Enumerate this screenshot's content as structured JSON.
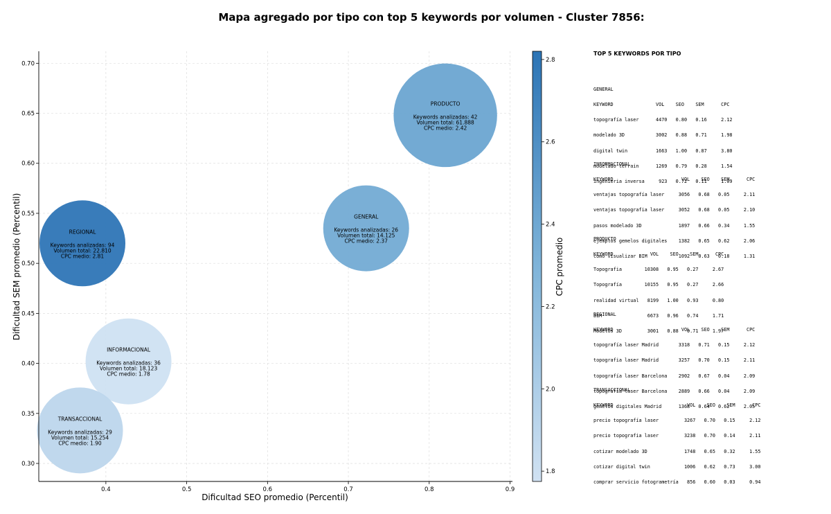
{
  "title": "Mapa agregado por tipo con top 5 keywords por volumen - Cluster 7856:",
  "chart_data": {
    "type": "scatter",
    "title": "Mapa agregado por tipo con top 5 keywords por volumen - Cluster 7856:",
    "xlabel": "Dificultad SEO promedio (Percentil)",
    "ylabel": "Dificultad SEM promedio (Percentil)",
    "xlim": [
      0.317,
      0.903
    ],
    "ylim": [
      0.282,
      0.712
    ],
    "xticks": [
      "0.4",
      "0.5",
      "0.6",
      "0.7",
      "0.8",
      "0.9"
    ],
    "yticks": [
      "0.30",
      "0.35",
      "0.40",
      "0.45",
      "0.50",
      "0.55",
      "0.60",
      "0.65",
      "0.70"
    ],
    "grid": true,
    "colorbar": {
      "label": "CPC promedio",
      "min": 1.775,
      "max": 2.82,
      "ticks": [
        "1.8",
        "2.0",
        "2.2",
        "2.4",
        "2.6",
        "2.8"
      ]
    },
    "points": [
      {
        "name": "PRODUCTO",
        "x": 0.82,
        "y": 0.648,
        "keywords_line": "Keywords analizadas: 42",
        "volume_line": "Volumen total: 61.888",
        "cpc_line": "CPC medio: 2.42",
        "cpc": 2.42,
        "volume": 61888
      },
      {
        "name": "GENERAL",
        "x": 0.722,
        "y": 0.535,
        "keywords_line": "Keywords analizadas: 26",
        "volume_line": "Volumen total: 14.125",
        "cpc_line": "CPC medio: 2.37",
        "cpc": 2.37,
        "volume": 14125
      },
      {
        "name": "REGIONAL",
        "x": 0.371,
        "y": 0.52,
        "keywords_line": "Keywords analizadas: 94",
        "volume_line": "Volumen total: 22.810",
        "cpc_line": "CPC medio: 2.81",
        "cpc": 2.81,
        "volume": 22810
      },
      {
        "name": "INFORMACIONAL",
        "x": 0.428,
        "y": 0.402,
        "keywords_line": "Keywords analizadas: 36",
        "volume_line": "Volumen total: 18.123",
        "cpc_line": "CPC medio: 1.78",
        "cpc": 1.78,
        "volume": 18123
      },
      {
        "name": "TRANSACCIONAL",
        "x": 0.368,
        "y": 0.333,
        "keywords_line": "Keywords analizadas: 29",
        "volume_line": "Volumen total: 15.254",
        "cpc_line": "CPC medio: 1.90",
        "cpc": 1.9,
        "volume": 15254
      }
    ]
  },
  "top_keywords": {
    "title": "TOP 5 KEYWORDS POR TIPO",
    "blocks": [
      {
        "type": "GENERAL",
        "lines": [
          "KEYWORD               VOL    SEO    SEM      CPC",
          "topografía laser      4470   0.80   0.16     2.12",
          "modelado 3D           3002   0.88   0.71     1.98",
          "digital twin          1663   1.00   0.87     3.80",
          "modelado terrain      1269   0.79   0.28     1.54",
          "ingenieria inversa     923   0.72   0.11     1.09"
        ]
      },
      {
        "type": "INFORMACIONAL",
        "lines": [
          "KEYWORD                        VOL    SEO    SEM      CPC",
          "ventajas topografía laser     3056   0.68   0.05     2.11",
          "ventajas topografia laser     3052   0.68   0.05     2.10",
          "pasos modelado 3D             1897   0.66   0.34     1.55",
          "ejemplos gemelos digitales    1382   0.65   0.62     2.06",
          "como visualizar BIM           1092   0.63   0.18     1.31"
        ]
      },
      {
        "type": "PRODUCTO",
        "lines": [
          "KEYWORD             VOL    SEO    SEM      CPC",
          "Topografia        10308   0.95   0.27     2.67",
          "Topografía        10155   0.95   0.27     2.66",
          "realidad virtual   8199   1.00   0.93     0.80",
          "BIM                6673   0.96   0.74     1.71",
          "Modelos 3D         3001   0.88   0.71     1.97"
        ]
      },
      {
        "type": "REGIONAL",
        "lines": [
          "KEYWORD                        VOL    SEO    SEM      CPC",
          "topografía laser Madrid       3318   0.71   0.15     2.12",
          "topografia laser Madrid       3257   0.70   0.15     2.11",
          "topografía laser Barcelona    2902   0.67   0.04     2.09",
          "topografia laser Barcelona    2889   0.66   0.04     2.09",
          "gemelos digitales Madrid      1368   0.64   0.62     2.05"
        ]
      },
      {
        "type": "TRANSACCIONAL",
        "lines": [
          "KEYWORD                          VOL    SEO    SEM      CPC",
          "precio topografía laser         3267   0.70   0.15     2.12",
          "precio topografia laser         3238   0.70   0.14     2.11",
          "cotizar modelado 3D             1748   0.65   0.32     1.55",
          "cotizar digital twin            1006   0.62   0.73     3.00",
          "comprar servicio fotogrametría   856   0.60   0.03     0.94"
        ]
      }
    ]
  }
}
